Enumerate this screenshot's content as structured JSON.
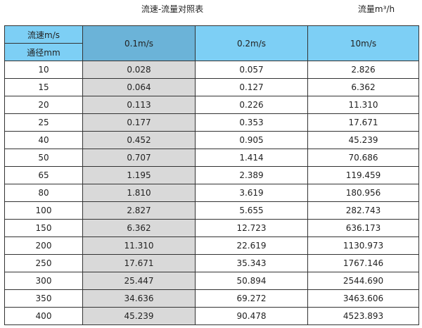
{
  "title": "流速-流量对照表",
  "unit": "流量m³/h",
  "header": {
    "velocity_label": "流速m/s",
    "diameter_label": "通径mm",
    "columns": [
      "0.1m/s",
      "0.2m/s",
      "10m/s"
    ]
  },
  "colors": {
    "header": "#7dcff5",
    "header_selected": "#6bb3d8",
    "highlight_column": "#d9d9d9"
  },
  "rows": [
    [
      "10",
      "0.028",
      "0.057",
      "2.826"
    ],
    [
      "15",
      "0.064",
      "0.127",
      "6.362"
    ],
    [
      "20",
      "0.113",
      "0.226",
      "11.310"
    ],
    [
      "25",
      "0.177",
      "0.353",
      "17.671"
    ],
    [
      "40",
      "0.452",
      "0.905",
      "45.239"
    ],
    [
      "50",
      "0.707",
      "1.414",
      "70.686"
    ],
    [
      "65",
      "1.195",
      "2.389",
      "119.459"
    ],
    [
      "80",
      "1.810",
      "3.619",
      "180.956"
    ],
    [
      "100",
      "2.827",
      "5.655",
      "282.743"
    ],
    [
      "150",
      "6.362",
      "12.723",
      "636.173"
    ],
    [
      "200",
      "11.310",
      "22.619",
      "1130.973"
    ],
    [
      "250",
      "17.671",
      "35.343",
      "1767.146"
    ],
    [
      "300",
      "25.447",
      "50.894",
      "2544.690"
    ],
    [
      "350",
      "34.636",
      "69.272",
      "3463.606"
    ],
    [
      "400",
      "45.239",
      "90.478",
      "4523.893"
    ]
  ]
}
